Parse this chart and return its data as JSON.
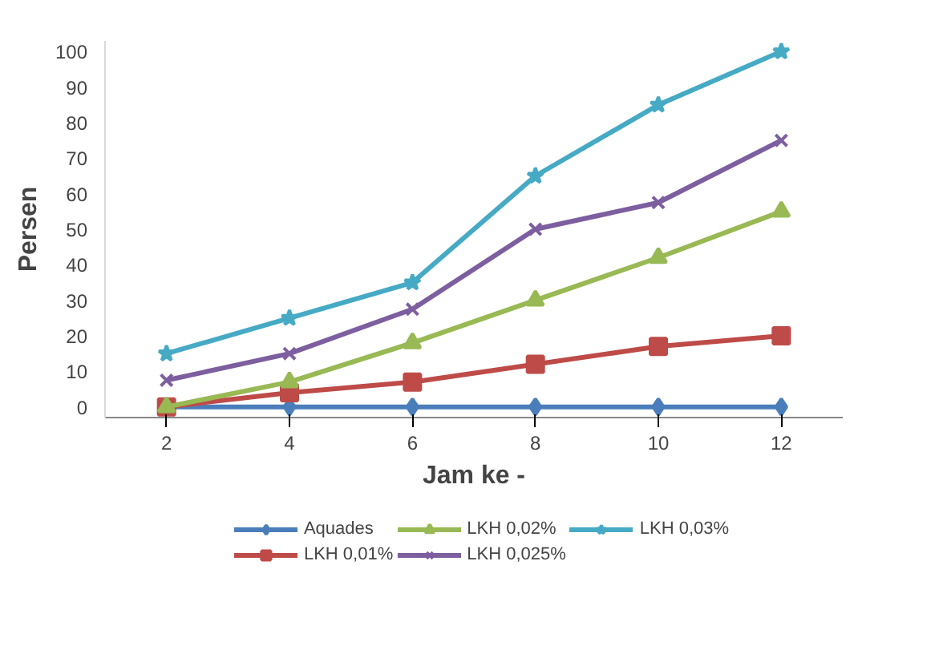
{
  "chart_data": {
    "type": "line",
    "xlabel": "Jam ke -",
    "ylabel": "Persen",
    "categories": [
      "2",
      "4",
      "6",
      "8",
      "10",
      "12"
    ],
    "ylim": [
      -3,
      103
    ],
    "yticks": [
      0,
      10,
      20,
      30,
      40,
      50,
      60,
      70,
      80,
      90,
      100
    ],
    "grid": false,
    "legend": "bottom",
    "series": [
      {
        "name": "Aquades",
        "color": "#4a7ebb",
        "marker": "diamond",
        "values": [
          0,
          0,
          0,
          0,
          0,
          0
        ]
      },
      {
        "name": "LKH 0,01%",
        "color": "#be4b48",
        "marker": "square",
        "values": [
          0,
          4,
          7,
          12,
          17,
          20
        ]
      },
      {
        "name": "LKH 0,02%",
        "color": "#98b954",
        "marker": "triangle",
        "values": [
          0,
          7,
          18,
          30,
          42,
          55
        ]
      },
      {
        "name": "LKH 0,025%",
        "color": "#7d5fa0",
        "marker": "cross",
        "values": [
          7.5,
          15,
          27.5,
          50,
          57.5,
          75
        ]
      },
      {
        "name": "LKH 0,03%",
        "color": "#46aac5",
        "marker": "star",
        "values": [
          15,
          25,
          35,
          65,
          85,
          100
        ]
      }
    ]
  }
}
